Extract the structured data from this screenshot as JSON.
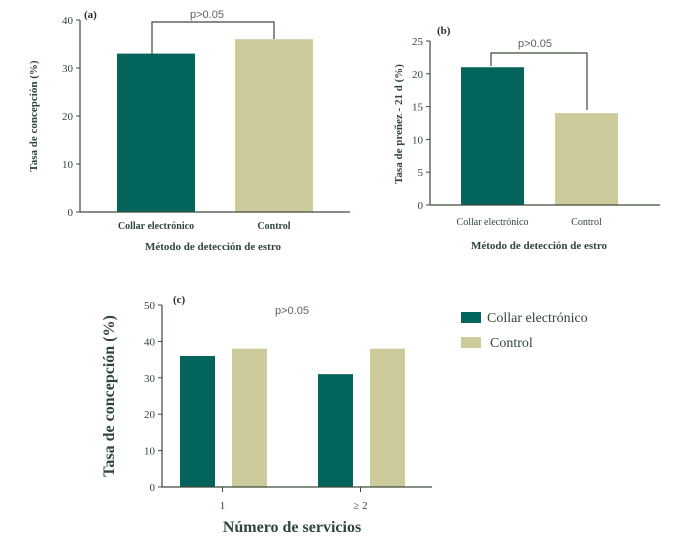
{
  "colors": {
    "collar": "#03645c",
    "control": "#cdcb9c",
    "axis": "#3d4a3a",
    "text": "#2e4636"
  },
  "legend": {
    "items": [
      {
        "label": "Collar electrónico",
        "color": "#03645c"
      },
      {
        "label": "Control",
        "color": "#cdcb9c"
      }
    ]
  },
  "chart_data": [
    {
      "panel": "(a)",
      "type": "bar",
      "categories": [
        "Collar electrónico",
        "Control"
      ],
      "values": [
        33,
        36
      ],
      "colors": [
        "#03645c",
        "#cdcb9c"
      ],
      "ylabel": "Tasa de concepción (%)",
      "xlabel": "Método de detección de estro",
      "ylim": [
        0,
        40
      ],
      "yticks": [
        0,
        10,
        20,
        30,
        40
      ],
      "annotation": "p>0.05"
    },
    {
      "panel": "(b)",
      "type": "bar",
      "categories": [
        "Collar  electrónico",
        "Control"
      ],
      "values": [
        21,
        14
      ],
      "colors": [
        "#03645c",
        "#cdcb9c"
      ],
      "ylabel": "Tasa  de  preñez  - 21  d  (%)",
      "xlabel": "Método de detección de estro",
      "ylim": [
        0,
        25
      ],
      "yticks": [
        0,
        5,
        10,
        15,
        20,
        25
      ],
      "annotation": "p>0.05"
    },
    {
      "panel": "(c)",
      "type": "bar",
      "categories": [
        "1",
        "≥ 2"
      ],
      "series": [
        {
          "name": "Collar electrónico",
          "values": [
            36,
            31
          ],
          "color": "#03645c"
        },
        {
          "name": "Control",
          "values": [
            38,
            38
          ],
          "color": "#cdcb9c"
        }
      ],
      "ylabel": "Tasa de concepción (%)",
      "xlabel": "Número de servicios",
      "ylim": [
        0,
        50
      ],
      "yticks": [
        0,
        10,
        20,
        30,
        40,
        50
      ],
      "annotation": "p>0.05"
    }
  ]
}
